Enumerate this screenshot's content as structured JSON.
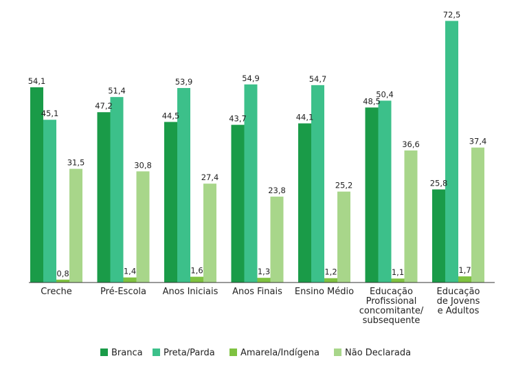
{
  "chart_data": {
    "type": "bar",
    "categories": [
      [
        "Creche"
      ],
      [
        "Pré-Escola"
      ],
      [
        "Anos Iniciais"
      ],
      [
        "Anos Finais"
      ],
      [
        "Ensino Médio"
      ],
      [
        "Educação",
        "Profissional",
        "concomitante/",
        "subsequente"
      ],
      [
        "Educação",
        "de Jovens",
        "e Adultos"
      ]
    ],
    "series": [
      {
        "name": "Branca",
        "color": "#1a9b48",
        "values": [
          54.1,
          47.2,
          44.5,
          43.7,
          44.1,
          48.5,
          25.8
        ],
        "labels": [
          "54,1",
          "47,2",
          "44,5",
          "43,7",
          "44,1",
          "48,5",
          "25,8"
        ]
      },
      {
        "name": "Preta/Parda",
        "color": "#3cc08a",
        "values": [
          45.1,
          51.4,
          53.9,
          54.9,
          54.7,
          50.4,
          72.5
        ],
        "labels": [
          "45,1",
          "51,4",
          "53,9",
          "54,9",
          "54,7",
          "50,4",
          "72,5"
        ]
      },
      {
        "name": "Amarela/Indígena",
        "color": "#7fc241",
        "values": [
          0.8,
          1.4,
          1.6,
          1.3,
          1.2,
          1.1,
          1.7
        ],
        "labels": [
          "0,8",
          "1,4",
          "1,6",
          "1,3",
          "1,2",
          "1,1",
          "1,7"
        ]
      },
      {
        "name": "Não Declarada",
        "color": "#a8d68a",
        "values": [
          31.5,
          30.8,
          27.4,
          23.8,
          25.2,
          36.6,
          37.4
        ],
        "labels": [
          "31,5",
          "30,8",
          "27,4",
          "23,8",
          "25,2",
          "36,6",
          "37,4"
        ]
      }
    ],
    "ylim": [
      0,
      80
    ],
    "grid": false,
    "legend": "bottom"
  }
}
